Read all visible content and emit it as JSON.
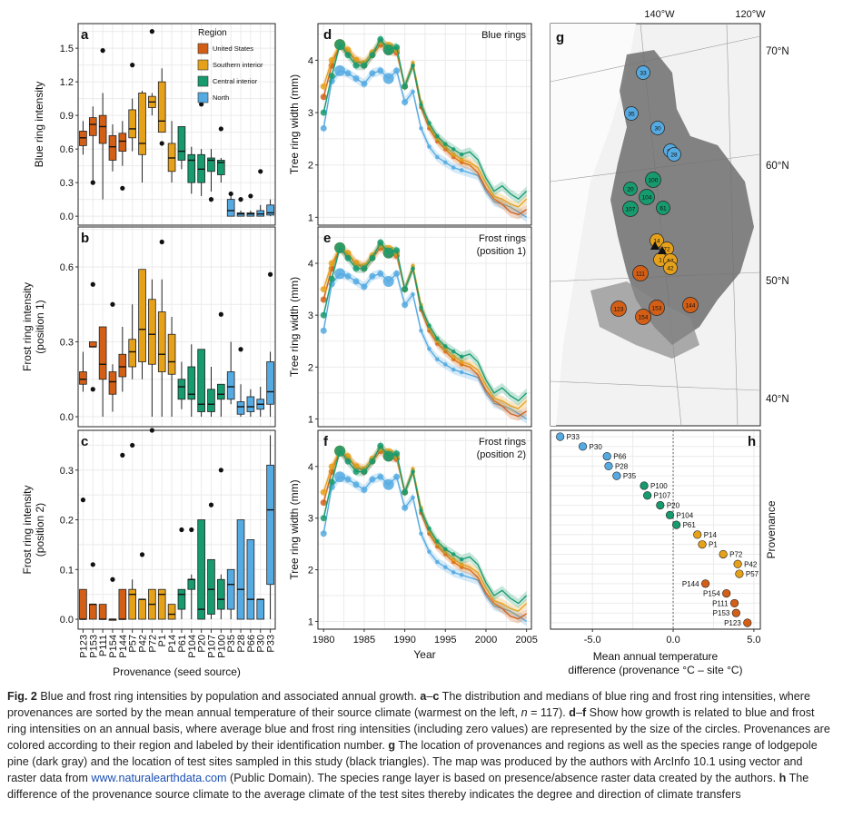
{
  "colors": {
    "US": "#d35f17",
    "SI": "#e6a11a",
    "CI": "#169a6e",
    "N": "#55aae2",
    "grid": "#ebebeb",
    "panel_border": "#222222"
  },
  "legend": {
    "title": "Region",
    "items": [
      {
        "label": "United States",
        "region": "US"
      },
      {
        "label": "Southern interior",
        "region": "SI"
      },
      {
        "label": "Central interior",
        "region": "CI"
      },
      {
        "label": "North",
        "region": "N"
      }
    ]
  },
  "box_panels": {
    "categories": [
      "P123",
      "P153",
      "P111",
      "P154",
      "P144",
      "P57",
      "P42",
      "P72",
      "P1",
      "P14",
      "P61",
      "P104",
      "P20",
      "P107",
      "P100",
      "P35",
      "P28",
      "P66",
      "P30",
      "P33"
    ],
    "regions": [
      "US",
      "US",
      "US",
      "US",
      "US",
      "SI",
      "SI",
      "SI",
      "SI",
      "SI",
      "CI",
      "CI",
      "CI",
      "CI",
      "CI",
      "N",
      "N",
      "N",
      "N",
      "N"
    ],
    "xlabel": "Provenance (seed source)",
    "panels": [
      {
        "letter": "a",
        "ylabel": "Blue ring intensity",
        "ylabel2": "",
        "ylim": [
          -0.08,
          1.72
        ],
        "ticks": [
          "0.0",
          "0.3",
          "0.6",
          "0.9",
          "1.2",
          "1.5"
        ],
        "tickvals": [
          0,
          0.3,
          0.6,
          0.9,
          1.2,
          1.5
        ],
        "boxes": [
          [
            0.55,
            0.63,
            0.7,
            0.76,
            0.85
          ],
          [
            0.3,
            0.72,
            0.82,
            0.88,
            0.98
          ],
          [
            0.15,
            0.65,
            0.8,
            0.9,
            1.1
          ],
          [
            0.4,
            0.5,
            0.62,
            0.72,
            0.82
          ],
          [
            0.45,
            0.58,
            0.67,
            0.74,
            0.85
          ],
          [
            0.58,
            0.7,
            0.78,
            0.95,
            1.05
          ],
          [
            0.3,
            0.55,
            0.65,
            1.1,
            1.12
          ],
          [
            0.9,
            0.97,
            1.02,
            1.07,
            1.1
          ],
          [
            0.75,
            0.75,
            0.85,
            1.2,
            1.32
          ],
          [
            0.3,
            0.4,
            0.52,
            0.65,
            0.85
          ],
          [
            0.42,
            0.5,
            0.58,
            0.8,
            0.8
          ],
          [
            0.2,
            0.3,
            0.5,
            0.55,
            0.62
          ],
          [
            0.18,
            0.3,
            0.42,
            0.55,
            0.6
          ],
          [
            0.22,
            0.4,
            0.5,
            0.52,
            0.6
          ],
          [
            0.3,
            0.37,
            0.48,
            0.5,
            0.52
          ],
          [
            0.0,
            0.0,
            0.05,
            0.15,
            0.2
          ],
          [
            0.0,
            0.0,
            0.02,
            0.03,
            0.05
          ],
          [
            0.0,
            0.0,
            0.02,
            0.03,
            0.05
          ],
          [
            0.0,
            0.0,
            0.02,
            0.05,
            0.1
          ],
          [
            0.0,
            0.01,
            0.03,
            0.1,
            0.15
          ]
        ],
        "outliers": [
          [],
          [
            0.3
          ],
          [
            1.48
          ],
          [],
          [
            0.25
          ],
          [
            1.35
          ],
          [],
          [
            1.65
          ],
          [
            0.65
          ],
          [],
          [],
          [],
          [
            1.0
          ],
          [
            0.15
          ],
          [
            0.78
          ],
          [
            0.2
          ],
          [
            0.15
          ],
          [
            0.18
          ],
          [
            0.4
          ],
          []
        ]
      },
      {
        "letter": "b",
        "ylabel": "Frost ring intensity",
        "ylabel2": "(position 1)",
        "ylim": [
          -0.04,
          0.76
        ],
        "ticks": [
          "0.0",
          "0.3",
          "0.6"
        ],
        "tickvals": [
          0,
          0.3,
          0.6
        ],
        "boxes": [
          [
            0.1,
            0.13,
            0.15,
            0.18,
            0.26
          ],
          [
            0.28,
            0.28,
            0.28,
            0.3,
            0.3
          ],
          [
            0.0,
            0.15,
            0.21,
            0.36,
            0.36
          ],
          [
            0.02,
            0.09,
            0.14,
            0.18,
            0.21
          ],
          [
            0.1,
            0.16,
            0.2,
            0.25,
            0.36
          ],
          [
            0.15,
            0.2,
            0.26,
            0.31,
            0.45
          ],
          [
            0.15,
            0.22,
            0.35,
            0.59,
            0.59
          ],
          [
            0.0,
            0.21,
            0.33,
            0.47,
            0.55
          ],
          [
            0.0,
            0.18,
            0.25,
            0.42,
            0.55
          ],
          [
            0.0,
            0.17,
            0.22,
            0.33,
            0.4
          ],
          [
            0.03,
            0.07,
            0.12,
            0.15,
            0.22
          ],
          [
            0.0,
            0.07,
            0.09,
            0.2,
            0.29
          ],
          [
            0.0,
            0.02,
            0.05,
            0.27,
            0.27
          ],
          [
            0.0,
            0.02,
            0.05,
            0.11,
            0.2
          ],
          [
            0.0,
            0.07,
            0.09,
            0.13,
            0.13
          ],
          [
            0.05,
            0.07,
            0.12,
            0.18,
            0.3
          ],
          [
            0.0,
            0.01,
            0.04,
            0.06,
            0.13
          ],
          [
            0.0,
            0.02,
            0.04,
            0.08,
            0.11
          ],
          [
            0.0,
            0.03,
            0.05,
            0.07,
            0.12
          ],
          [
            0.0,
            0.05,
            0.1,
            0.22,
            0.26
          ]
        ],
        "outliers": [
          [],
          [
            0.53,
            0.11
          ],
          [],
          [
            0.45
          ],
          [],
          [],
          [],
          [],
          [
            0.7
          ],
          [],
          [],
          [],
          [],
          [],
          [
            0.41
          ],
          [],
          [
            0.27
          ],
          [],
          [],
          [
            0.57
          ]
        ]
      },
      {
        "letter": "c",
        "ylabel": "Frost ring intensity",
        "ylabel2": "(position 2)",
        "ylim": [
          -0.02,
          0.38
        ],
        "ticks": [
          "0.0",
          "0.1",
          "0.2",
          "0.3"
        ],
        "tickvals": [
          0,
          0.1,
          0.2,
          0.3
        ],
        "boxes": [
          [
            0.0,
            0.0,
            0.0,
            0.06,
            0.06
          ],
          [
            0.0,
            0.0,
            0.03,
            0.03,
            0.03
          ],
          [
            0.0,
            0.0,
            0.0,
            0.03,
            0.03
          ],
          [
            0.0,
            0.0,
            0.0,
            0.0,
            0.0
          ],
          [
            0.0,
            0.0,
            0.0,
            0.06,
            0.06
          ],
          [
            0.0,
            0.0,
            0.05,
            0.06,
            0.08
          ],
          [
            0.0,
            0.0,
            0.04,
            0.04,
            0.04
          ],
          [
            0.0,
            0.0,
            0.03,
            0.06,
            0.06
          ],
          [
            0.0,
            0.0,
            0.05,
            0.06,
            0.06
          ],
          [
            0.0,
            0.0,
            0.01,
            0.03,
            0.03
          ],
          [
            0.0,
            0.02,
            0.05,
            0.06,
            0.06
          ],
          [
            0.0,
            0.06,
            0.08,
            0.08,
            0.09
          ],
          [
            0.0,
            0.0,
            0.02,
            0.2,
            0.2
          ],
          [
            0.0,
            0.01,
            0.06,
            0.12,
            0.12
          ],
          [
            0.0,
            0.02,
            0.04,
            0.08,
            0.09
          ],
          [
            0.0,
            0.02,
            0.07,
            0.1,
            0.1
          ],
          [
            0.0,
            0.0,
            0.06,
            0.2,
            0.2
          ],
          [
            0.0,
            0.0,
            0.04,
            0.16,
            0.16
          ],
          [
            0.0,
            0.0,
            0.04,
            0.04,
            0.04
          ],
          [
            0.0,
            0.07,
            0.22,
            0.31,
            0.37
          ]
        ],
        "outliers": [
          [
            0.24
          ],
          [
            0.11
          ],
          [],
          [
            0.08
          ],
          [
            0.33
          ],
          [
            0.35
          ],
          [
            0.13
          ],
          [
            0.38
          ],
          [],
          [],
          [
            0.18
          ],
          [
            0.18
          ],
          [],
          [
            0.23
          ],
          [
            0.3
          ],
          [],
          [],
          [],
          [],
          []
        ]
      }
    ]
  },
  "line_panels": {
    "x_years": [
      1980,
      1981,
      1982,
      1983,
      1984,
      1985,
      1986,
      1987,
      1988,
      1989,
      1990,
      1991,
      1992,
      1993,
      1994,
      1995,
      1996,
      1997,
      1998,
      1999,
      2000,
      2001,
      2002,
      2003,
      2004,
      2005
    ],
    "xticks": [
      "1980",
      "1985",
      "1990",
      "1995",
      "2000",
      "2005"
    ],
    "xtickvals": [
      1980,
      1985,
      1990,
      1995,
      2000,
      2005
    ],
    "xlabel": "Year",
    "ylabel": "Tree ring width (mm)",
    "yticks": [
      "1",
      "2",
      "3",
      "4"
    ],
    "ylim": [
      0.85,
      4.7
    ],
    "series": {
      "US": [
        3.3,
        3.9,
        4.3,
        4.15,
        4.0,
        3.9,
        4.1,
        4.3,
        4.2,
        4.15,
        3.5,
        3.9,
        3.1,
        2.7,
        2.45,
        2.3,
        2.15,
        2.05,
        2.0,
        1.85,
        1.55,
        1.35,
        1.25,
        1.1,
        1.05,
        1.15
      ],
      "SI": [
        3.5,
        4.0,
        4.3,
        4.2,
        4.0,
        3.95,
        4.15,
        4.35,
        4.25,
        4.2,
        3.5,
        3.95,
        3.2,
        2.75,
        2.5,
        2.35,
        2.2,
        2.1,
        2.05,
        1.95,
        1.65,
        1.4,
        1.35,
        1.25,
        1.2,
        1.35
      ],
      "CI": [
        3.0,
        3.7,
        4.3,
        4.1,
        3.9,
        3.9,
        4.1,
        4.4,
        4.2,
        4.25,
        3.5,
        3.9,
        3.15,
        2.8,
        2.55,
        2.4,
        2.3,
        2.2,
        2.25,
        2.1,
        1.75,
        1.5,
        1.6,
        1.45,
        1.35,
        1.5
      ],
      "N": [
        2.7,
        3.6,
        3.8,
        3.75,
        3.65,
        3.55,
        3.75,
        3.8,
        3.65,
        3.8,
        3.2,
        3.4,
        2.7,
        2.35,
        2.15,
        2.05,
        1.95,
        1.9,
        1.85,
        1.8,
        1.5,
        1.3,
        1.25,
        1.2,
        1.1,
        1.0
      ]
    },
    "panels": [
      {
        "letter": "d",
        "title": "Blue rings",
        "title2": ""
      },
      {
        "letter": "e",
        "title": "Frost rings",
        "title2": "(position 1)"
      },
      {
        "letter": "f",
        "title": "Frost rings",
        "title2": "(position 2)"
      }
    ]
  },
  "map": {
    "letter": "g",
    "lon_labels": [
      "140°W",
      "120°W"
    ],
    "lat_labels": [
      "70°N",
      "60°N",
      "50°N",
      "40°N"
    ],
    "provenances": [
      {
        "id": "33",
        "r": "N"
      },
      {
        "id": "35",
        "r": "N"
      },
      {
        "id": "30",
        "r": "N"
      },
      {
        "id": "66",
        "r": "N"
      },
      {
        "id": "28",
        "r": "N"
      },
      {
        "id": "100",
        "r": "CI"
      },
      {
        "id": "20",
        "r": "CI"
      },
      {
        "id": "104",
        "r": "CI"
      },
      {
        "id": "107",
        "r": "CI"
      },
      {
        "id": "61",
        "r": "CI"
      },
      {
        "id": "14",
        "r": "SI"
      },
      {
        "id": "72",
        "r": "SI"
      },
      {
        "id": "1",
        "r": "SI"
      },
      {
        "id": "57",
        "r": "SI"
      },
      {
        "id": "42",
        "r": "SI"
      },
      {
        "id": "111",
        "r": "US"
      },
      {
        "id": "123",
        "r": "US"
      },
      {
        "id": "153",
        "r": "US"
      },
      {
        "id": "154",
        "r": "US"
      },
      {
        "id": "144",
        "r": "US"
      }
    ]
  },
  "dot_panel": {
    "letter": "h",
    "ylabel": "Provenance",
    "xlabel": "Mean annual temperature",
    "xlabel2": "difference (provenance °C – site °C)",
    "xticks": [
      "-5.0",
      "0.0",
      "5.0"
    ],
    "xtickvals": [
      -5,
      0,
      5
    ],
    "xlim": [
      -7.6,
      5.4
    ],
    "points": [
      {
        "label": "P33",
        "x": -7.0,
        "r": "N"
      },
      {
        "label": "P30",
        "x": -5.6,
        "r": "N"
      },
      {
        "label": "P66",
        "x": -4.1,
        "r": "N"
      },
      {
        "label": "P28",
        "x": -4.0,
        "r": "N"
      },
      {
        "label": "P35",
        "x": -3.5,
        "r": "N"
      },
      {
        "label": "P100",
        "x": -1.8,
        "r": "CI"
      },
      {
        "label": "P107",
        "x": -1.6,
        "r": "CI"
      },
      {
        "label": "P20",
        "x": -0.8,
        "r": "CI"
      },
      {
        "label": "P104",
        "x": -0.2,
        "r": "CI"
      },
      {
        "label": "P61",
        "x": 0.2,
        "r": "CI"
      },
      {
        "label": "P14",
        "x": 1.5,
        "r": "SI"
      },
      {
        "label": "P1",
        "x": 1.8,
        "r": "SI"
      },
      {
        "label": "P72",
        "x": 3.1,
        "r": "SI"
      },
      {
        "label": "P42",
        "x": 4.0,
        "r": "SI"
      },
      {
        "label": "P57",
        "x": 4.1,
        "r": "SI"
      },
      {
        "label": "P144",
        "x": 2.0,
        "r": "US"
      },
      {
        "label": "P154",
        "x": 3.3,
        "r": "US"
      },
      {
        "label": "P111",
        "x": 3.8,
        "r": "US"
      },
      {
        "label": "P153",
        "x": 3.9,
        "r": "US"
      },
      {
        "label": "P123",
        "x": 4.6,
        "r": "US"
      }
    ]
  },
  "caption": {
    "fig": "Fig. 2",
    "t1": " Blue and frost ring intensities by population and associated annual growth. ",
    "b1": "a",
    "t2": "–",
    "b2": "c",
    "t3": " The distribution and medians of blue ring and frost ring intensities, where provenances are sorted by the mean annual temperature of their source climate (warmest on the left, ",
    "n": "n",
    "t4": " = 117). ",
    "b3": "d",
    "t5": "–",
    "b4": "f",
    "t6": " Show how growth is related to blue and frost ring intensities on an annual basis, where average blue and frost ring intensities (including zero values) are represented by the size of the circles. Provenances are colored according to their region and labeled by their identification number. ",
    "b5": "g",
    "t7": " The location of provenances and regions as well as the species range of lodgepole pine (dark gray) and the location of test sites sampled in this study (black triangles). The map was produced by the authors with ArcInfo 10.1 using vector and raster data from ",
    "link": "www.naturalearthdata.com",
    "t8": " (Public Domain). The species range layer is based on presence/absence raster data created by the authors. ",
    "b6": "h",
    "t9": " The difference of the provenance source climate to the average climate of the test sites thereby indicates the degree and direction of climate transfers"
  }
}
